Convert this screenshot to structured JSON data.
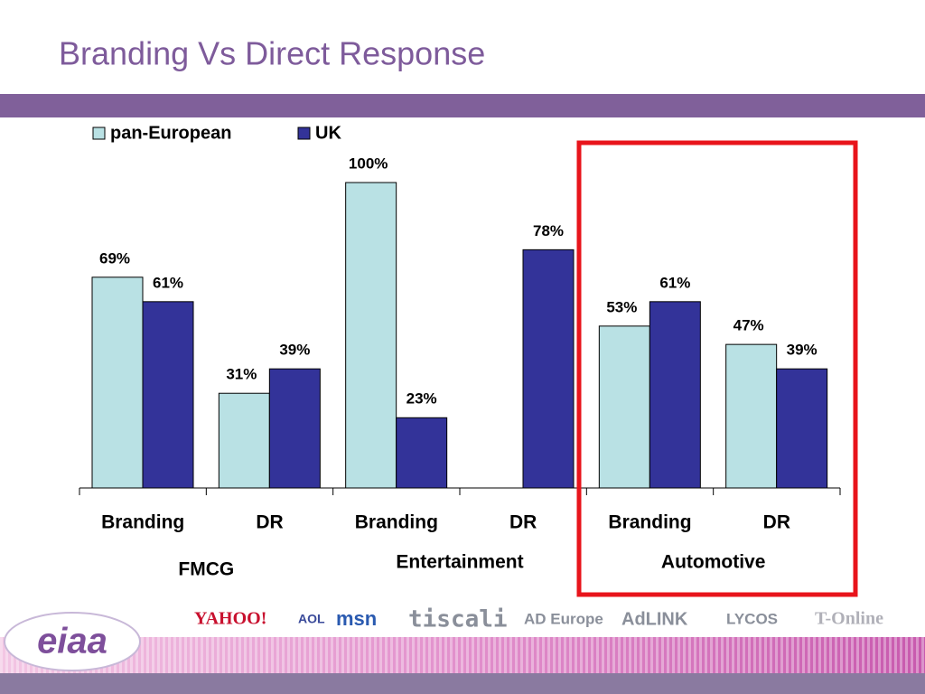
{
  "chart_data": {
    "type": "bar",
    "title": "Branding Vs Direct Response",
    "categories": [
      "Branding",
      "DR",
      "Branding",
      "DR",
      "Branding",
      "DR"
    ],
    "groups": [
      "FMCG",
      "Entertainment",
      "Automotive"
    ],
    "series": [
      {
        "name": "pan-European",
        "color": "#b9e1e4",
        "values": [
          69,
          31,
          100,
          null,
          53,
          47
        ],
        "value_labels": [
          "69%",
          "31%",
          "100%",
          null,
          "53%",
          "47%"
        ]
      },
      {
        "name": "UK",
        "color": "#333399",
        "values": [
          61,
          39,
          23,
          78,
          61,
          39
        ],
        "value_labels": [
          "61%",
          "39%",
          "23%",
          "78%",
          "61%",
          "39%"
        ]
      }
    ],
    "ylim": [
      0,
      100
    ],
    "legend": "top-left",
    "highlight_color": "#e8141b"
  },
  "footer": {
    "brand": "eiaa",
    "logos": [
      "YAHOO!",
      "AOL",
      "msn",
      "tiscali",
      "AD Europe",
      "AdLINK",
      "LYCOS",
      "T-Online"
    ]
  }
}
